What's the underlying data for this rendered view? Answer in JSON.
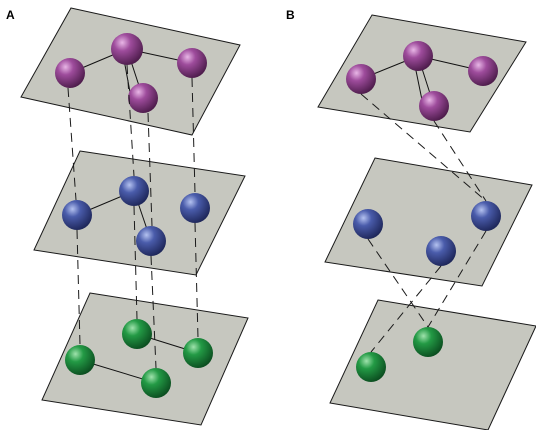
{
  "panels": [
    {
      "label": "A"
    },
    {
      "label": "B"
    }
  ],
  "colors": {
    "plane_fill": "#c6c7bf",
    "purple_node": "#8a3a88",
    "blue_node": "#3f4f98",
    "green_node": "#1e8a3c"
  }
}
